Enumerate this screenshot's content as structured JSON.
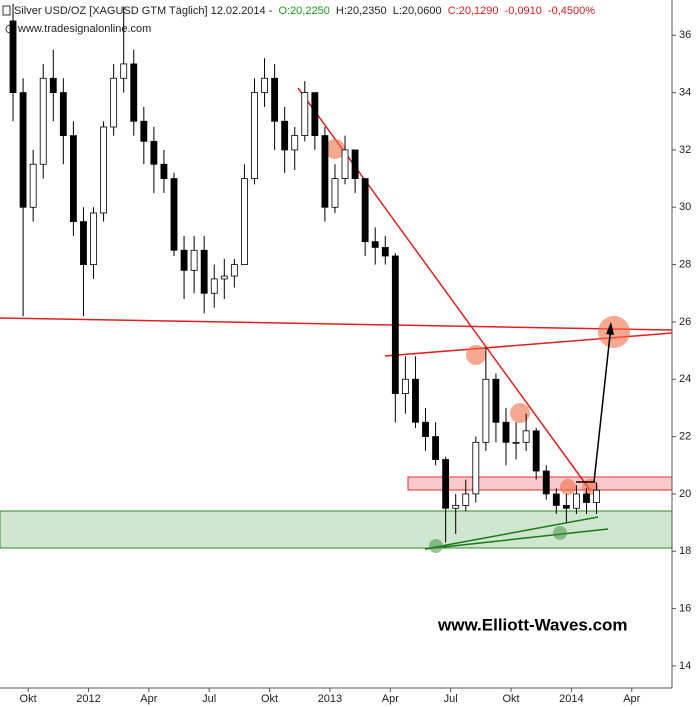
{
  "chart_data": {
    "type": "candlestick",
    "title": "Silver USD/OZ [XAGUSD GTM  Täglich] 12.02.2014 -",
    "open_label": "O:20,2250",
    "high_label": "H:20,2350",
    "low_label": "L:20,0600",
    "close_label": "C:20,1290",
    "change_label": "-0,0910",
    "change_pct_label": "-0,4500%",
    "source": "www.tradesignalonline.com",
    "watermark": "www.Elliott-Waves.com",
    "categories": [
      null,
      null,
      "Okt",
      null,
      null,
      null,
      null,
      null,
      "2012",
      null,
      null,
      null,
      null,
      null,
      "Apr",
      null,
      null,
      null,
      null,
      null,
      "Jul",
      null,
      null,
      null,
      null,
      null,
      "Okt",
      null,
      null,
      null,
      null,
      null,
      "2013",
      null,
      null,
      null,
      null,
      null,
      "Apr",
      null,
      null,
      null,
      null,
      null,
      "Jul",
      null,
      null,
      null,
      null,
      null,
      "Okt",
      null,
      null,
      null,
      null,
      null,
      "2014",
      null,
      null,
      null,
      null,
      null,
      "Apr",
      null,
      null,
      null
    ],
    "open": [
      36.5,
      34,
      30,
      31.5,
      34.5,
      34,
      32.5,
      29.5,
      28,
      29.8,
      32.8,
      34.5,
      35,
      33,
      32.3,
      31.5,
      31,
      28.5,
      27.8,
      28.5,
      27,
      27.5,
      27.6,
      28,
      31,
      34,
      34.5,
      33,
      32,
      32.5,
      34,
      32.5,
      30,
      31,
      32,
      31,
      28.8,
      28.6,
      28.3,
      23.5,
      24,
      22.5,
      22,
      21.2,
      19.5,
      19.6,
      20,
      21.8,
      24,
      22.5,
      21.8,
      21.8,
      22.2,
      20.8,
      20,
      19.6,
      19.5,
      20,
      19.7,
      null,
      null,
      null,
      null,
      null,
      null,
      null
    ],
    "high": [
      37.1,
      34.5,
      32,
      35,
      35.5,
      34.5,
      33,
      30,
      30,
      33,
      35,
      37,
      35.5,
      33.5,
      32.8,
      32,
      31.2,
      29,
      29,
      29,
      28,
      28.2,
      28.2,
      31.5,
      34.5,
      35.2,
      35,
      33.5,
      32.8,
      34.4,
      34,
      32.8,
      31.5,
      32.5,
      32,
      31,
      29.3,
      29,
      28.4,
      24.8,
      24.8,
      23,
      22.5,
      21.3,
      20,
      20.5,
      22,
      25.1,
      24.2,
      23,
      22.5,
      22.8,
      22.3,
      21,
      20.2,
      20,
      20.3,
      20.2,
      20.4,
      null,
      null,
      null,
      null,
      null,
      null,
      null
    ],
    "low": [
      33,
      26.2,
      29.5,
      31,
      33,
      31.5,
      29,
      26.2,
      27.5,
      29.5,
      32.5,
      34,
      32.5,
      31.5,
      30.5,
      30.5,
      28.3,
      26.8,
      27,
      26.3,
      26.5,
      26.8,
      27.2,
      28,
      30.8,
      33.5,
      32,
      31.2,
      31.3,
      32.3,
      32,
      29.5,
      29.8,
      30.8,
      30.5,
      28.3,
      28,
      28,
      22.5,
      22.8,
      22.3,
      21.5,
      21,
      18.3,
      18.6,
      19.4,
      19.7,
      21.5,
      21.8,
      21,
      21.2,
      21.5,
      20.5,
      19.8,
      19.3,
      19,
      19.3,
      19.3,
      19.3,
      null,
      null,
      null,
      null,
      null,
      null,
      null
    ],
    "close": [
      34,
      30,
      31.5,
      34.5,
      34,
      32.5,
      29.5,
      28,
      29.8,
      32.8,
      34.5,
      35,
      33,
      32.3,
      31.5,
      31,
      28.5,
      27.8,
      28.5,
      27,
      27.5,
      27.6,
      28,
      31,
      34,
      34.5,
      33,
      32,
      32.5,
      34,
      32.5,
      30,
      31,
      32,
      31,
      28.8,
      28.6,
      28.3,
      23.5,
      24,
      22.5,
      22,
      21.2,
      19.5,
      19.6,
      20,
      21.8,
      24,
      22.5,
      21.8,
      21.8,
      22.2,
      20.8,
      20,
      19.6,
      19.5,
      20,
      19.7,
      20.13,
      null,
      null,
      null,
      null,
      null,
      null,
      null
    ],
    "up_color": "#ffffff",
    "down_color": "#000000",
    "ylim": [
      13.23,
      37.23
    ],
    "yticks": [
      14,
      16,
      18,
      20,
      22,
      24,
      26,
      28,
      30,
      32,
      34,
      36
    ]
  }
}
